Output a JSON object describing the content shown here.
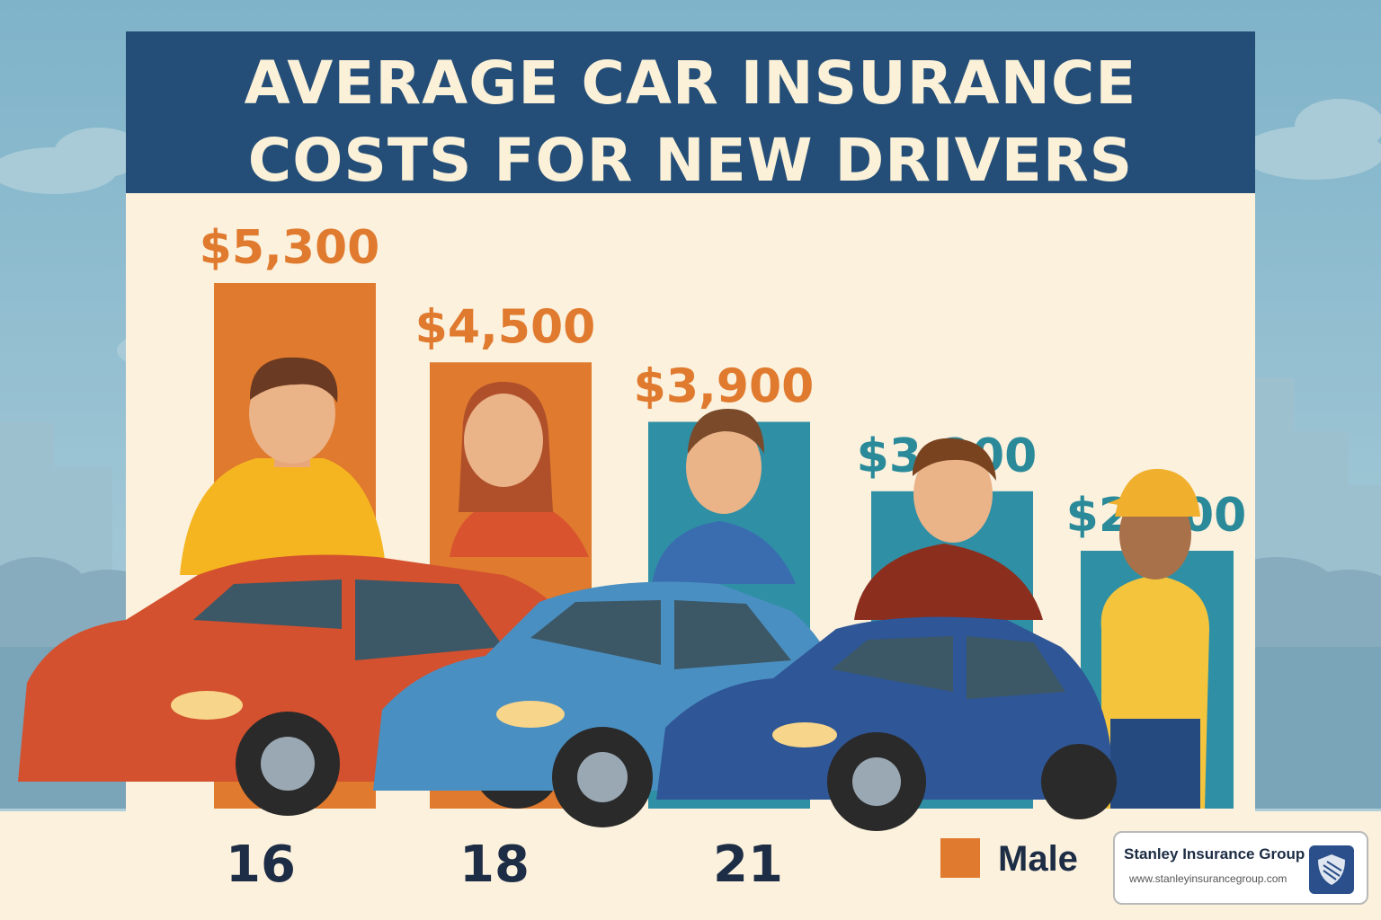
{
  "title": {
    "line1": "AVERAGE CAR INSURANCE",
    "line2": "COSTS FOR NEW DRIVERS"
  },
  "chart_data": {
    "type": "bar",
    "values": [
      5300,
      4500,
      3900,
      3200,
      2600
    ],
    "value_labels": [
      "$5,300",
      "$4,500",
      "$3,900",
      "$3,200",
      "$2,600"
    ],
    "bar_colors": [
      "#e07a2e",
      "#e07a2e",
      "#2f8fa5",
      "#2f8fa5",
      "#2f8fa5"
    ],
    "label_colors": [
      "#e07a2e",
      "#e07a2e",
      "#e07a2e",
      "#2a8a9a",
      "#2a8a9a"
    ],
    "x_tick_labels": [
      "16",
      "18",
      "21"
    ],
    "legend": [
      {
        "label": "Male",
        "color": "#e07a2e"
      }
    ],
    "ylim": [
      0,
      6000
    ]
  },
  "branding": {
    "name": "Stanley Insurance Group",
    "url": "www.stanleyinsurancegroup.com"
  },
  "colors": {
    "title_band": "#244e78",
    "panel": "#fbf1dd",
    "sky": "#8fb8cc"
  }
}
